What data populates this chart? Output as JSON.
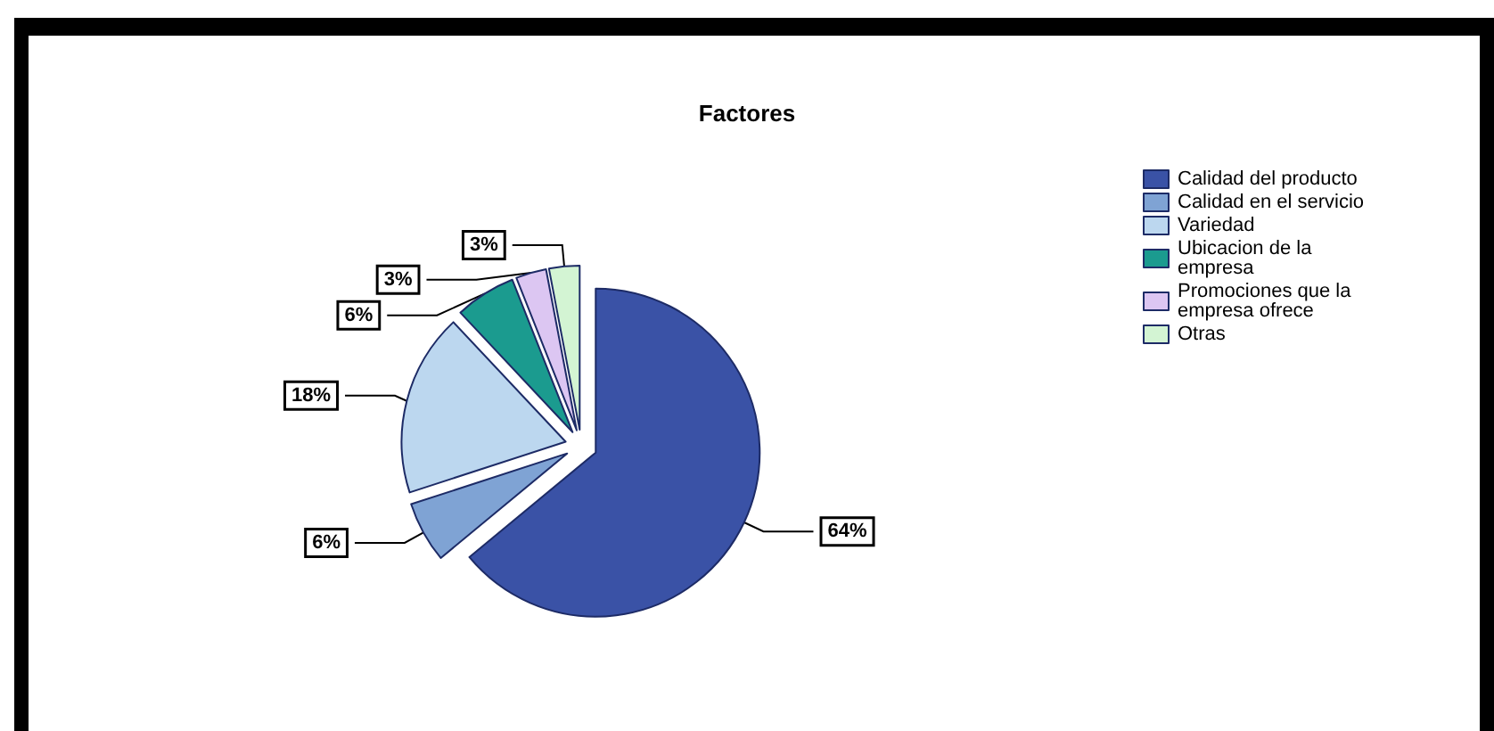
{
  "chart_data": {
    "type": "pie",
    "title": "Factores",
    "categories": [
      "Calidad del producto",
      "Calidad en el servicio",
      "Variedad",
      "Ubicacion de la empresa",
      "Promociones que la empresa ofrece",
      "Otras"
    ],
    "values": [
      64,
      6,
      18,
      6,
      3,
      3
    ],
    "value_labels": [
      "64%",
      "6%",
      "18%",
      "6%",
      "3%",
      "3%"
    ],
    "colors": [
      "#3a52a6",
      "#7fa3d4",
      "#bcd7ef",
      "#1b9b8f",
      "#dcc6f2",
      "#d3f4d3"
    ],
    "legend": "right"
  }
}
